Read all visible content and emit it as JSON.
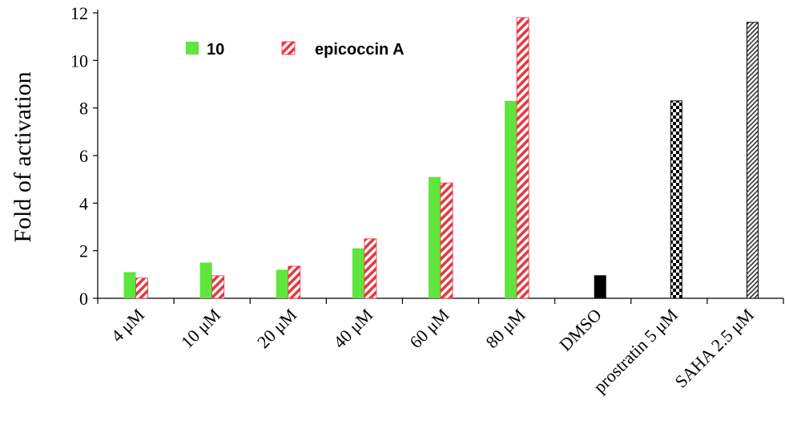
{
  "chart_data": {
    "type": "bar",
    "ylabel": "Fold of activation",
    "xlabel": "",
    "ylim": [
      0,
      12
    ],
    "yticks": [
      0,
      2,
      4,
      6,
      8,
      10,
      12
    ],
    "categories": [
      "4 μM",
      "10 μM",
      "20 μM",
      "40 μM",
      "60 μM",
      "80 μM",
      "DMSO",
      "prostratin 5 μM",
      "SAHA 2.5 μM"
    ],
    "series": [
      {
        "name": "10",
        "fill": "solid",
        "color": "#5ee63c",
        "values": [
          1.1,
          1.5,
          1.2,
          2.1,
          5.1,
          8.3,
          null,
          null,
          null
        ]
      },
      {
        "name": "epicoccin A",
        "fill": "stripes",
        "color": "#e8363f",
        "values": [
          0.85,
          0.95,
          1.35,
          2.5,
          4.85,
          11.8,
          null,
          null,
          null
        ]
      }
    ],
    "controls": [
      {
        "category": "DMSO",
        "value": 0.95,
        "fill": "solid",
        "color": "#000000"
      },
      {
        "category": "prostratin 5 μM",
        "value": 8.3,
        "fill": "checker",
        "color": "#000000"
      },
      {
        "category": "SAHA 2.5 μM",
        "value": 11.6,
        "fill": "hatch",
        "color": "#333333"
      }
    ],
    "legend_position": "top-left",
    "grid": false
  }
}
